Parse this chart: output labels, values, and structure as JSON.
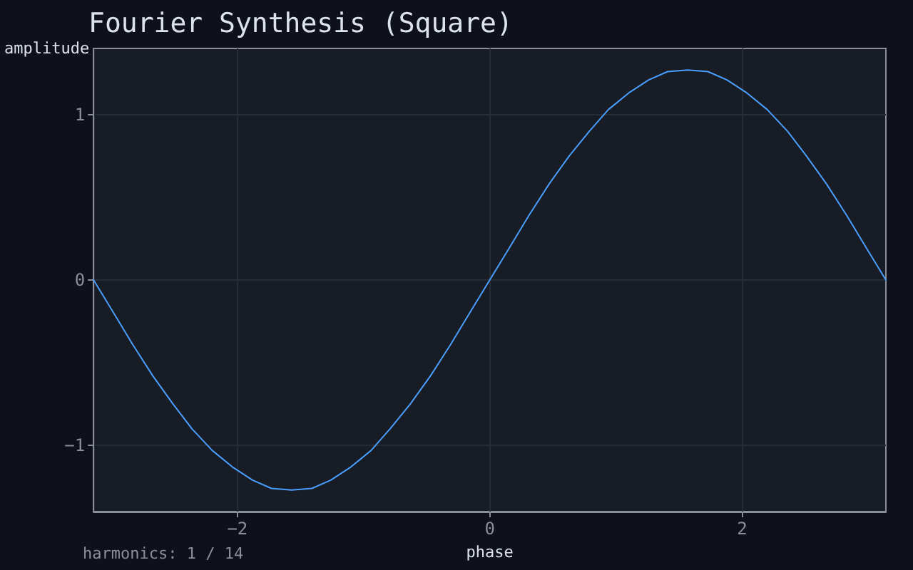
{
  "chart_data": {
    "type": "line",
    "title": "Fourier Synthesis (Square)",
    "xlabel": "phase",
    "ylabel": "amplitude",
    "annotations": [
      "harmonics: 1 / 14"
    ],
    "x": [
      -3.14,
      -2.98,
      -2.83,
      -2.67,
      -2.51,
      -2.36,
      -2.2,
      -2.04,
      -1.88,
      -1.73,
      -1.57,
      -1.41,
      -1.26,
      -1.1,
      -0.94,
      -0.79,
      -0.63,
      -0.47,
      -0.31,
      -0.16,
      0,
      0.16,
      0.31,
      0.47,
      0.63,
      0.79,
      0.94,
      1.1,
      1.26,
      1.41,
      1.57,
      1.73,
      1.88,
      2.04,
      2.2,
      2.36,
      2.51,
      2.67,
      2.83,
      2.98,
      3.14
    ],
    "values": [
      0,
      -0.2,
      -0.39,
      -0.58,
      -0.75,
      -0.9,
      -1.03,
      -1.13,
      -1.21,
      -1.26,
      -1.27,
      -1.26,
      -1.21,
      -1.13,
      -1.03,
      -0.9,
      -0.75,
      -0.58,
      -0.39,
      -0.2,
      0,
      0.2,
      0.39,
      0.58,
      0.75,
      0.9,
      1.03,
      1.13,
      1.21,
      1.26,
      1.27,
      1.26,
      1.21,
      1.13,
      1.03,
      0.9,
      0.75,
      0.58,
      0.39,
      0.2,
      0
    ],
    "color": "#4a9eff",
    "xlim": [
      -3.14,
      3.14
    ],
    "ylim": [
      -1.4,
      1.4
    ],
    "xticks": [
      -2,
      0,
      2
    ],
    "yticks": [
      -1,
      0,
      1
    ],
    "grid": true,
    "marker": "none",
    "line_style": "solid"
  }
}
